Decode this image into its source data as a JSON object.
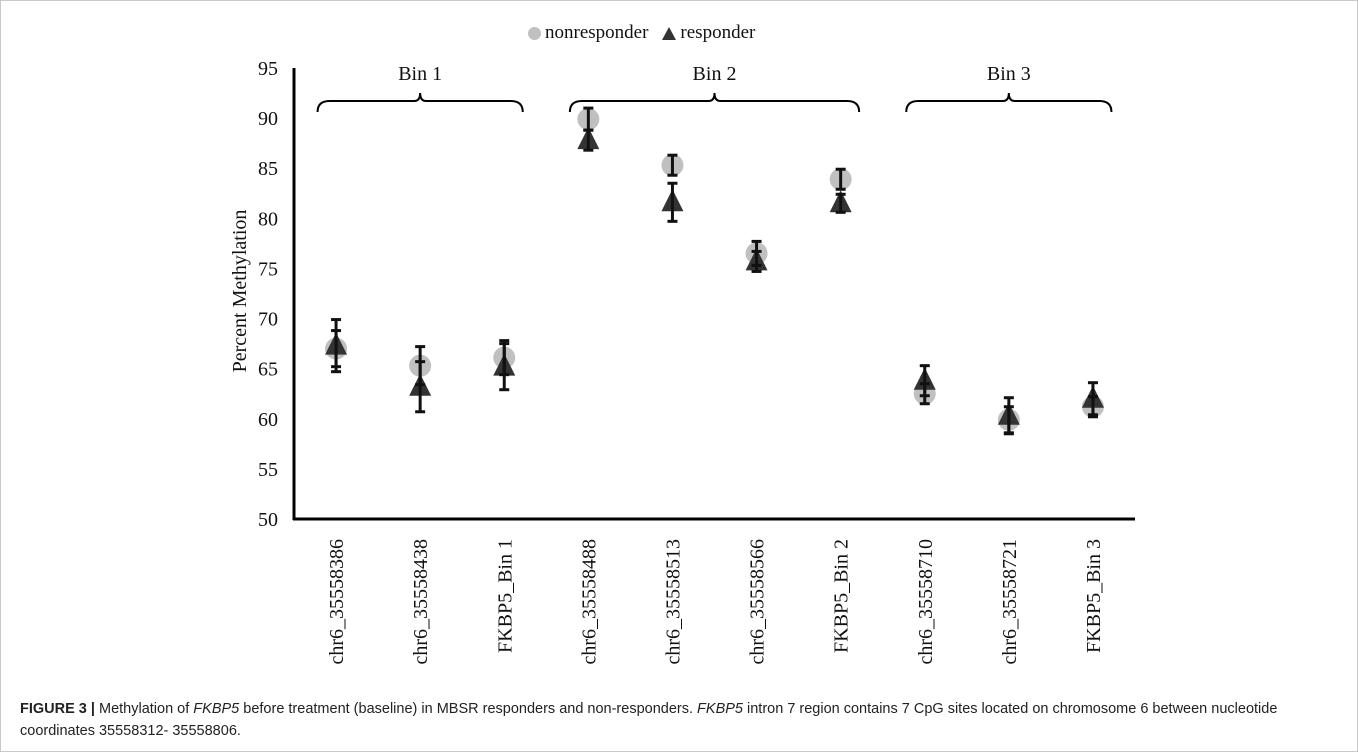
{
  "figure": {
    "label": "FIGURE 3 |",
    "caption_part1": " Methylation of ",
    "caption_gene1": "FKBP5",
    "caption_part2": " before treatment (baseline) in MBSR responders and non-responders. ",
    "caption_gene2": "FKBP5",
    "caption_part3": " intron 7 region contains 7 CpG sites located on chromosome 6 between nucleotide coordinates 35558312- 35558806."
  },
  "chart_data": {
    "type": "scatter",
    "title": "",
    "xlabel": "",
    "ylabel": "Percent Methylation",
    "ylim": [
      50,
      95
    ],
    "yticks": [
      50,
      55,
      60,
      65,
      70,
      75,
      80,
      85,
      90,
      95
    ],
    "grid": false,
    "legend_position": "top-center",
    "categories": [
      "chr6_35558386",
      "chr6_35558438",
      "FKBP5_Bin 1",
      "chr6_35558488",
      "chr6_35558513",
      "chr6_35558566",
      "FKBP5_Bin 2",
      "chr6_35558710",
      "chr6_35558721",
      "FKBP5_Bin 3"
    ],
    "series": [
      {
        "name": "nonresponder",
        "marker": "circle",
        "color": "#c0c0c0",
        "values": [
          67.0,
          65.3,
          66.1,
          89.9,
          85.3,
          76.5,
          83.9,
          62.5,
          59.9,
          61.2
        ],
        "error": [
          1.8,
          1.9,
          1.7,
          1.1,
          1.0,
          1.2,
          1.0,
          1.0,
          1.3,
          1.0
        ]
      },
      {
        "name": "responder",
        "marker": "triangle",
        "color": "#333333",
        "values": [
          67.3,
          63.2,
          65.2,
          87.8,
          81.6,
          75.7,
          81.5,
          63.8,
          60.3,
          62.0
        ],
        "error": [
          2.6,
          2.5,
          2.3,
          1.0,
          1.9,
          1.0,
          0.9,
          1.5,
          1.8,
          1.6
        ]
      }
    ],
    "annotations": [
      {
        "text": "Bin 1",
        "from": 0,
        "to": 2
      },
      {
        "text": "Bin 2",
        "from": 3,
        "to": 6
      },
      {
        "text": "Bin 3",
        "from": 7,
        "to": 9
      }
    ]
  }
}
